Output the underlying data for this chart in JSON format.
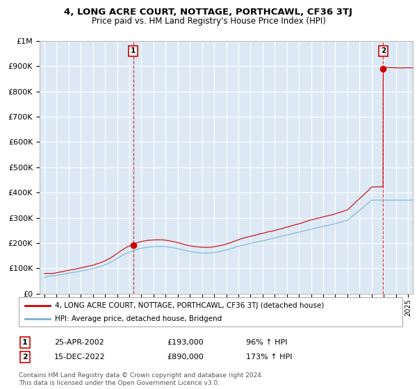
{
  "title": "4, LONG ACRE COURT, NOTTAGE, PORTHCAWL, CF36 3TJ",
  "subtitle": "Price paid vs. HM Land Registry's House Price Index (HPI)",
  "bg_color": "#dce9f5",
  "red_line_color": "#cc0000",
  "blue_line_color": "#7bafd4",
  "grid_color": "#ffffff",
  "ylim": [
    0,
    1000000
  ],
  "yticks": [
    0,
    100000,
    200000,
    300000,
    400000,
    500000,
    600000,
    700000,
    800000,
    900000,
    1000000
  ],
  "ytick_labels": [
    "£0",
    "£100K",
    "£200K",
    "£300K",
    "£400K",
    "£500K",
    "£600K",
    "£700K",
    "£800K",
    "£900K",
    "£1M"
  ],
  "sale1_year": 2002.32,
  "sale1_price": 193000,
  "sale2_year": 2022.96,
  "sale2_price": 890000,
  "legend_line1": "4, LONG ACRE COURT, NOTTAGE, PORTHCAWL, CF36 3TJ (detached house)",
  "legend_line2": "HPI: Average price, detached house, Bridgend",
  "note1_num": "1",
  "note1_date": "25-APR-2002",
  "note1_price": "£193,000",
  "note1_hpi": "96% ↑ HPI",
  "note2_num": "2",
  "note2_date": "15-DEC-2022",
  "note2_price": "£890,000",
  "note2_hpi": "173% ↑ HPI",
  "footnote": "Contains HM Land Registry data © Crown copyright and database right 2024.\nThis data is licensed under the Open Government Licence v3.0."
}
